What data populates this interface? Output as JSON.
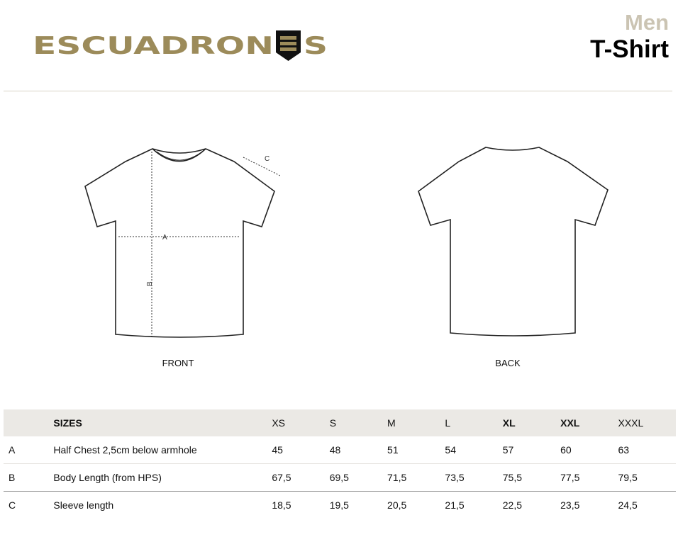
{
  "brand": {
    "logo_text": "ESCUADRONES",
    "gold": "#9c8b5a"
  },
  "header": {
    "category": "Men",
    "product": "T-Shirt"
  },
  "views": {
    "front": "FRONT",
    "back": "BACK",
    "markers": {
      "a": "A",
      "b": "B",
      "c": "C"
    }
  },
  "table": {
    "header": {
      "label": "SIZES",
      "sizes": [
        "XS",
        "S",
        "M",
        "L",
        "XL",
        "XXL",
        "XXXL"
      ]
    },
    "rows": [
      {
        "code": "A",
        "label": "Half Chest 2,5cm below armhole",
        "values": [
          "45",
          "48",
          "51",
          "54",
          "57",
          "60",
          "63"
        ]
      },
      {
        "code": "B",
        "label": "Body Length (from HPS)",
        "values": [
          "67,5",
          "69,5",
          "71,5",
          "73,5",
          "75,5",
          "77,5",
          "79,5"
        ]
      },
      {
        "code": "C",
        "label": "Sleeve length",
        "values": [
          "18,5",
          "19,5",
          "20,5",
          "21,5",
          "22,5",
          "23,5",
          "24,5"
        ]
      }
    ]
  }
}
